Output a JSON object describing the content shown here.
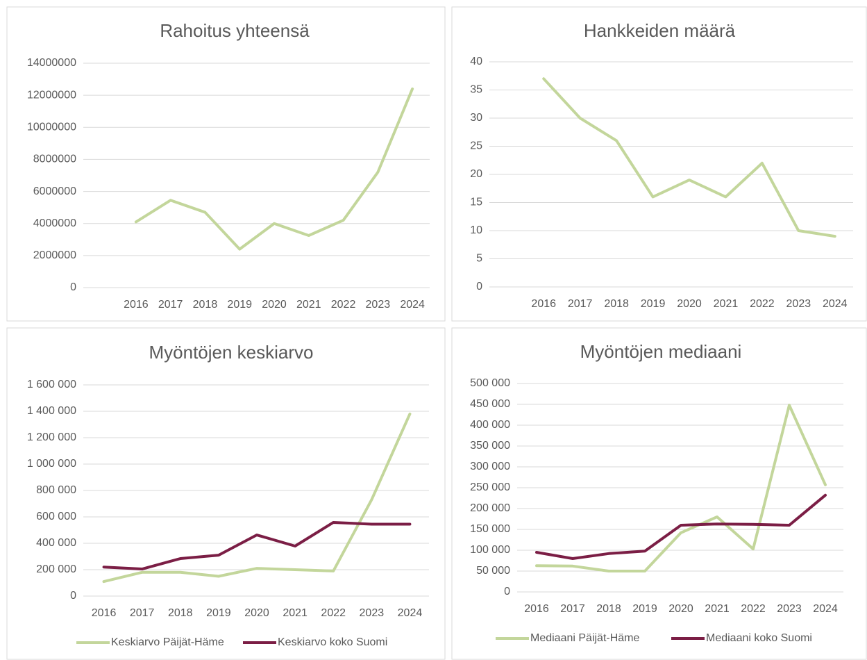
{
  "chart_data": [
    {
      "type": "line",
      "title": "Rahoitus yhteensä",
      "categories": [
        "2016",
        "2017",
        "2018",
        "2019",
        "2020",
        "2021",
        "2022",
        "2023",
        "2024"
      ],
      "series": [
        {
          "name": "Rahoitus yhteensä",
          "color": "#c3d69b",
          "values": [
            4100000,
            5450000,
            4700000,
            2400000,
            4000000,
            3250000,
            4200000,
            7200000,
            12400000
          ]
        }
      ],
      "ylim": [
        0,
        14000000
      ],
      "yticks": [
        0,
        2000000,
        4000000,
        6000000,
        8000000,
        10000000,
        12000000,
        14000000
      ],
      "grid": true,
      "legend": false
    },
    {
      "type": "line",
      "title": "Hankkeiden määrä",
      "categories": [
        "2016",
        "2017",
        "2018",
        "2019",
        "2020",
        "2021",
        "2022",
        "2023",
        "2024"
      ],
      "series": [
        {
          "name": "Hankkeiden määrä",
          "color": "#c3d69b",
          "values": [
            37,
            30,
            26,
            16,
            19,
            16,
            22,
            10,
            9
          ]
        }
      ],
      "ylim": [
        0,
        40
      ],
      "yticks": [
        0,
        5,
        10,
        15,
        20,
        25,
        30,
        35,
        40
      ],
      "grid": true,
      "legend": false
    },
    {
      "type": "line",
      "title": "Myöntöjen keskiarvo",
      "categories": [
        "2016",
        "2017",
        "2018",
        "2019",
        "2020",
        "2021",
        "2022",
        "2023",
        "2024"
      ],
      "series": [
        {
          "name": "Keskiarvo Päijät-Häme",
          "color": "#c3d69b",
          "values": [
            110000,
            180000,
            180000,
            150000,
            210000,
            200000,
            190000,
            730000,
            1380000
          ]
        },
        {
          "name": "Keskiarvo koko Suomi",
          "color": "#7b1e45",
          "values": [
            220000,
            205000,
            284000,
            310000,
            463000,
            379000,
            558000,
            545000,
            545000
          ]
        }
      ],
      "ylim": [
        0,
        1600000
      ],
      "yticks": [
        0,
        {
          "value": 200000,
          "label": "200 000"
        },
        {
          "value": 400000,
          "label": "400 000"
        },
        {
          "value": 600000,
          "label": "600 000"
        },
        {
          "value": 800000,
          "label": "800 000"
        },
        {
          "value": 1000000,
          "label": "1 000 000"
        },
        {
          "value": 1200000,
          "label": "1 200 000"
        },
        {
          "value": 1400000,
          "label": "1 400 000"
        },
        {
          "value": 1600000,
          "label": "1 600 000"
        }
      ],
      "grid": true,
      "legend": "bottom"
    },
    {
      "type": "line",
      "title": "Myöntöjen mediaani",
      "categories": [
        "2016",
        "2017",
        "2018",
        "2019",
        "2020",
        "2021",
        "2022",
        "2023",
        "2024"
      ],
      "series": [
        {
          "name": "Mediaani Päijät-Häme",
          "color": "#c3d69b",
          "values": [
            63000,
            62000,
            50000,
            50000,
            142000,
            180000,
            103000,
            448000,
            257000
          ]
        },
        {
          "name": "Mediaani koko Suomi",
          "color": "#7b1e45",
          "values": [
            95000,
            80000,
            92000,
            98000,
            160000,
            163000,
            162000,
            160000,
            232000
          ]
        }
      ],
      "ylim": [
        0,
        500000
      ],
      "yticks": [
        0,
        {
          "value": 50000,
          "label": "50 000"
        },
        {
          "value": 100000,
          "label": "100 000"
        },
        {
          "value": 150000,
          "label": "150 000"
        },
        {
          "value": 200000,
          "label": "200 000"
        },
        {
          "value": 250000,
          "label": "250 000"
        },
        {
          "value": 300000,
          "label": "300 000"
        },
        {
          "value": 350000,
          "label": "350 000"
        },
        {
          "value": 400000,
          "label": "400 000"
        },
        {
          "value": 450000,
          "label": "450 000"
        },
        {
          "value": 500000,
          "label": "500 000"
        }
      ],
      "grid": true,
      "legend": "bottom"
    }
  ]
}
